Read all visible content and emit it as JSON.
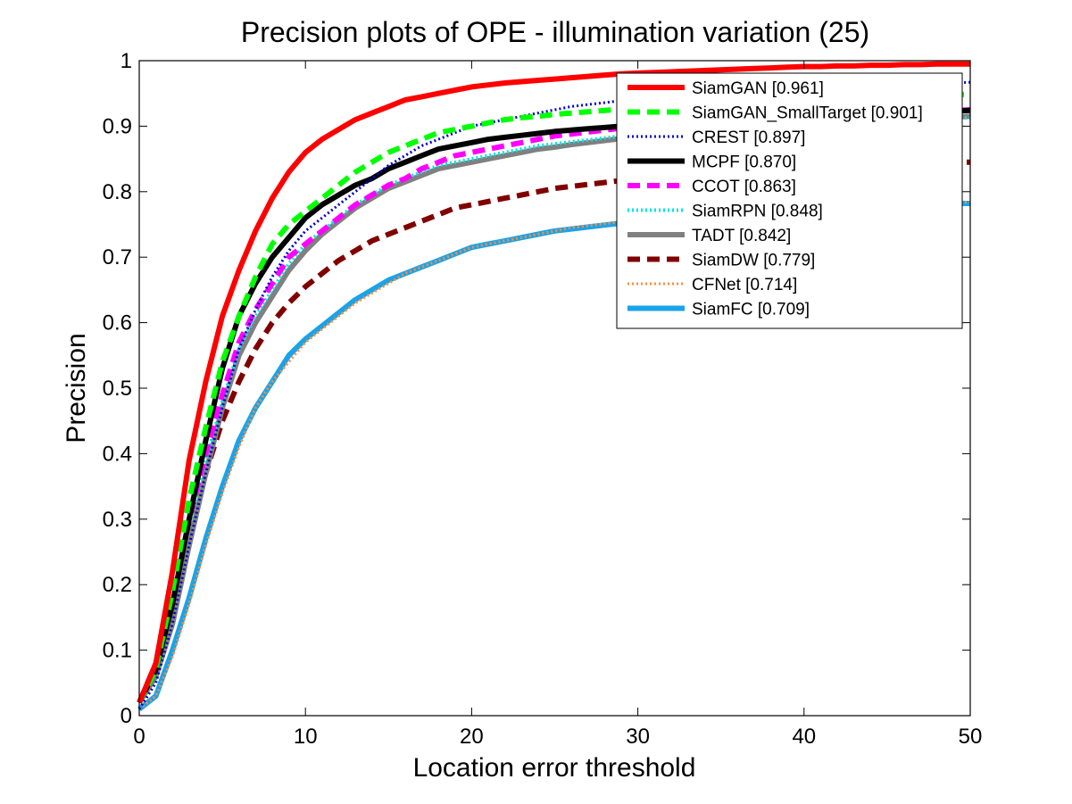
{
  "chart_data": {
    "type": "line",
    "title": "Precision plots of OPE - illumination variation (25)",
    "xlabel": "Location error threshold",
    "ylabel": "Precision",
    "xlim": [
      0,
      50
    ],
    "ylim": [
      0,
      1
    ],
    "xticks": [
      "0",
      "10",
      "20",
      "30",
      "40",
      "50"
    ],
    "yticks": [
      "0",
      "0.1",
      "0.2",
      "0.3",
      "0.4",
      "0.5",
      "0.6",
      "0.7",
      "0.8",
      "0.9",
      "1"
    ],
    "grid": false,
    "legend_position": "top-right",
    "x": [
      0,
      1,
      2,
      3,
      4,
      5,
      6,
      7,
      8,
      9,
      10,
      11,
      12,
      13,
      14,
      15,
      16,
      17,
      18,
      19,
      20,
      21,
      22,
      23,
      24,
      25,
      26,
      27,
      28,
      29,
      30,
      31,
      32,
      33,
      34,
      35,
      36,
      37,
      38,
      39,
      40,
      41,
      42,
      43,
      44,
      45,
      46,
      47,
      48,
      49,
      50
    ],
    "series": [
      {
        "name": "SiamGAN [0.961]",
        "color": "#ff0000",
        "style": "solid",
        "width": 6,
        "values": [
          0.02,
          0.08,
          0.22,
          0.39,
          0.51,
          0.61,
          0.68,
          0.74,
          0.79,
          0.83,
          0.86,
          0.88,
          0.895,
          0.91,
          0.92,
          0.93,
          0.94,
          0.945,
          0.95,
          0.955,
          0.96,
          0.963,
          0.966,
          0.968,
          0.97,
          0.972,
          0.974,
          0.976,
          0.978,
          0.98,
          0.981,
          0.982,
          0.983,
          0.984,
          0.985,
          0.986,
          0.987,
          0.988,
          0.989,
          0.99,
          0.991,
          0.991,
          0.992,
          0.992,
          0.993,
          0.993,
          0.994,
          0.994,
          0.995,
          0.995,
          0.995
        ]
      },
      {
        "name": "SiamGAN_SmallTarget [0.901]",
        "color": "#00ff00",
        "style": "dashed",
        "width": 6,
        "values": [
          0.02,
          0.07,
          0.19,
          0.33,
          0.44,
          0.54,
          0.61,
          0.67,
          0.72,
          0.75,
          0.77,
          0.79,
          0.81,
          0.83,
          0.845,
          0.86,
          0.87,
          0.88,
          0.89,
          0.895,
          0.9,
          0.905,
          0.91,
          0.913,
          0.915,
          0.918,
          0.92,
          0.922,
          0.924,
          0.926,
          0.928,
          0.93,
          0.931,
          0.932,
          0.933,
          0.934,
          0.935,
          0.936,
          0.937,
          0.938,
          0.939,
          0.94,
          0.941,
          0.942,
          0.943,
          0.944,
          0.945,
          0.946,
          0.947,
          0.948,
          0.949
        ]
      },
      {
        "name": "CREST [0.897]",
        "color": "#0000cc",
        "style": "dotted",
        "width": 3,
        "values": [
          0.01,
          0.05,
          0.14,
          0.26,
          0.37,
          0.47,
          0.56,
          0.62,
          0.67,
          0.71,
          0.74,
          0.76,
          0.78,
          0.8,
          0.82,
          0.84,
          0.855,
          0.87,
          0.88,
          0.89,
          0.9,
          0.905,
          0.91,
          0.915,
          0.92,
          0.925,
          0.93,
          0.933,
          0.936,
          0.939,
          0.942,
          0.944,
          0.946,
          0.948,
          0.95,
          0.952,
          0.953,
          0.954,
          0.955,
          0.956,
          0.957,
          0.958,
          0.959,
          0.96,
          0.961,
          0.962,
          0.963,
          0.964,
          0.965,
          0.966,
          0.967
        ]
      },
      {
        "name": "MCPF [0.870]",
        "color": "#000000",
        "style": "solid",
        "width": 6,
        "values": [
          0.02,
          0.07,
          0.17,
          0.3,
          0.42,
          0.53,
          0.61,
          0.66,
          0.7,
          0.73,
          0.76,
          0.78,
          0.795,
          0.81,
          0.82,
          0.835,
          0.845,
          0.855,
          0.865,
          0.87,
          0.875,
          0.88,
          0.883,
          0.886,
          0.889,
          0.892,
          0.894,
          0.896,
          0.898,
          0.9,
          0.902,
          0.904,
          0.906,
          0.907,
          0.908,
          0.909,
          0.91,
          0.911,
          0.912,
          0.913,
          0.914,
          0.915,
          0.916,
          0.917,
          0.918,
          0.919,
          0.92,
          0.921,
          0.922,
          0.923,
          0.924
        ]
      },
      {
        "name": "CCOT [0.863]",
        "color": "#ff00ff",
        "style": "dashed",
        "width": 6,
        "values": [
          0.02,
          0.08,
          0.18,
          0.3,
          0.4,
          0.49,
          0.57,
          0.62,
          0.66,
          0.7,
          0.72,
          0.74,
          0.76,
          0.78,
          0.795,
          0.81,
          0.82,
          0.835,
          0.845,
          0.855,
          0.86,
          0.865,
          0.87,
          0.875,
          0.88,
          0.885,
          0.888,
          0.891,
          0.894,
          0.897,
          0.9,
          0.902,
          0.904,
          0.906,
          0.908,
          0.91,
          0.911,
          0.912,
          0.913,
          0.914,
          0.915,
          0.916,
          0.917,
          0.918,
          0.919,
          0.92,
          0.921,
          0.922,
          0.923,
          0.924,
          0.925
        ]
      },
      {
        "name": "SiamRPN [0.848]",
        "color": "#00e5e5",
        "style": "dotted",
        "width": 4,
        "values": [
          0.02,
          0.07,
          0.17,
          0.29,
          0.39,
          0.48,
          0.56,
          0.61,
          0.65,
          0.69,
          0.72,
          0.74,
          0.76,
          0.78,
          0.795,
          0.81,
          0.82,
          0.83,
          0.84,
          0.845,
          0.85,
          0.855,
          0.86,
          0.865,
          0.87,
          0.873,
          0.876,
          0.879,
          0.882,
          0.885,
          0.887,
          0.889,
          0.891,
          0.893,
          0.895,
          0.897,
          0.899,
          0.9,
          0.901,
          0.902,
          0.903,
          0.904,
          0.905,
          0.906,
          0.907,
          0.908,
          0.909,
          0.91,
          0.911,
          0.912,
          0.913
        ]
      },
      {
        "name": "TADT [0.842]",
        "color": "#808080",
        "style": "solid",
        "width": 6,
        "values": [
          0.02,
          0.06,
          0.14,
          0.26,
          0.37,
          0.47,
          0.55,
          0.6,
          0.64,
          0.68,
          0.71,
          0.735,
          0.755,
          0.775,
          0.79,
          0.805,
          0.815,
          0.825,
          0.835,
          0.84,
          0.845,
          0.85,
          0.855,
          0.86,
          0.865,
          0.868,
          0.872,
          0.875,
          0.878,
          0.881,
          0.884,
          0.887,
          0.89,
          0.892,
          0.894,
          0.896,
          0.898,
          0.9,
          0.902,
          0.904,
          0.905,
          0.906,
          0.907,
          0.908,
          0.909,
          0.91,
          0.911,
          0.912,
          0.913,
          0.914,
          0.915
        ]
      },
      {
        "name": "SiamDW [0.779]",
        "color": "#800000",
        "style": "dashed",
        "width": 6,
        "values": [
          0.02,
          0.07,
          0.17,
          0.28,
          0.37,
          0.45,
          0.51,
          0.56,
          0.6,
          0.63,
          0.655,
          0.675,
          0.695,
          0.71,
          0.725,
          0.735,
          0.745,
          0.755,
          0.765,
          0.775,
          0.78,
          0.785,
          0.79,
          0.795,
          0.8,
          0.805,
          0.808,
          0.811,
          0.814,
          0.817,
          0.82,
          0.822,
          0.824,
          0.826,
          0.828,
          0.83,
          0.832,
          0.833,
          0.834,
          0.835,
          0.836,
          0.837,
          0.838,
          0.839,
          0.84,
          0.841,
          0.842,
          0.843,
          0.844,
          0.845,
          0.845
        ]
      },
      {
        "name": "CFNet [0.714]",
        "color": "#ff8c3c",
        "style": "dotted",
        "width": 3,
        "values": [
          0.01,
          0.03,
          0.09,
          0.17,
          0.26,
          0.34,
          0.41,
          0.47,
          0.51,
          0.54,
          0.57,
          0.59,
          0.61,
          0.63,
          0.645,
          0.66,
          0.675,
          0.685,
          0.695,
          0.705,
          0.715,
          0.72,
          0.725,
          0.73,
          0.735,
          0.74,
          0.745,
          0.748,
          0.751,
          0.754,
          0.757,
          0.76,
          0.762,
          0.764,
          0.766,
          0.768,
          0.77,
          0.771,
          0.772,
          0.773,
          0.774,
          0.775,
          0.776,
          0.777,
          0.778,
          0.779,
          0.78,
          0.781,
          0.782,
          0.783,
          0.784
        ]
      },
      {
        "name": "SiamFC [0.709]",
        "color": "#1aa3e8",
        "style": "solid",
        "width": 6,
        "values": [
          0.01,
          0.03,
          0.1,
          0.18,
          0.27,
          0.35,
          0.42,
          0.47,
          0.51,
          0.55,
          0.575,
          0.595,
          0.615,
          0.635,
          0.65,
          0.665,
          0.675,
          0.685,
          0.695,
          0.705,
          0.715,
          0.72,
          0.725,
          0.73,
          0.735,
          0.74,
          0.743,
          0.746,
          0.749,
          0.752,
          0.755,
          0.758,
          0.76,
          0.762,
          0.764,
          0.766,
          0.768,
          0.77,
          0.771,
          0.772,
          0.773,
          0.774,
          0.775,
          0.776,
          0.777,
          0.778,
          0.779,
          0.78,
          0.781,
          0.782,
          0.782
        ]
      }
    ]
  }
}
